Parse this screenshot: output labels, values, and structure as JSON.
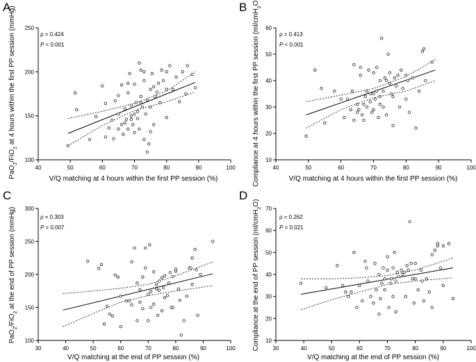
{
  "chart_data": [
    {
      "type": "scatter",
      "panel_letter": "A",
      "xlabel": "V/Q matching at 4 hours within the first PP session (%)",
      "ylabel_parts": [
        "PaO",
        "2",
        "/FiO",
        "2",
        " at 4 hours within the first PP session (mmHg)"
      ],
      "xlim": [
        40,
        100
      ],
      "ylim": [
        100,
        250
      ],
      "xticks": [
        40,
        50,
        60,
        70,
        80,
        90,
        100
      ],
      "yticks": [
        100,
        150,
        200,
        250
      ],
      "annotation_rho": "ρ = 0.424",
      "annotation_p_label": "P",
      "annotation_p_value": " < 0.001",
      "fit": {
        "x0": 49.3,
        "y0": 130,
        "x1": 89,
        "y1": 188
      },
      "ci_upper": [
        [
          49.3,
          147
        ],
        [
          60,
          155
        ],
        [
          70,
          164
        ],
        [
          80,
          178
        ],
        [
          89,
          200
        ]
      ],
      "ci_lower": [
        [
          49.3,
          116
        ],
        [
          60,
          139
        ],
        [
          70,
          156
        ],
        [
          80,
          166
        ],
        [
          89,
          177
        ]
      ],
      "points": [
        [
          49.3,
          116
        ],
        [
          51.5,
          176
        ],
        [
          52,
          157
        ],
        [
          56,
          123
        ],
        [
          58,
          149
        ],
        [
          60,
          184
        ],
        [
          61,
          164
        ],
        [
          61,
          126
        ],
        [
          62,
          136
        ],
        [
          63,
          145
        ],
        [
          63.5,
          124
        ],
        [
          64,
          167
        ],
        [
          65,
          152
        ],
        [
          65,
          173
        ],
        [
          65,
          135
        ],
        [
          66,
          140
        ],
        [
          66,
          185
        ],
        [
          66.5,
          129
        ],
        [
          67,
          142
        ],
        [
          67,
          158
        ],
        [
          67.5,
          146
        ],
        [
          68,
          135
        ],
        [
          68,
          176
        ],
        [
          68.5,
          198
        ],
        [
          68,
          187
        ],
        [
          69,
          146
        ],
        [
          69,
          162
        ],
        [
          69.5,
          140
        ],
        [
          69,
          150
        ],
        [
          70,
          152
        ],
        [
          70,
          131
        ],
        [
          70,
          186
        ],
        [
          70.5,
          165
        ],
        [
          71,
          147
        ],
        [
          71,
          155
        ],
        [
          71.5,
          210
        ],
        [
          71.5,
          135
        ],
        [
          72,
          165
        ],
        [
          72,
          172
        ],
        [
          72,
          202
        ],
        [
          72.5,
          160
        ],
        [
          73,
          123
        ],
        [
          73,
          190
        ],
        [
          73,
          200
        ],
        [
          73.5,
          152
        ],
        [
          74,
          168
        ],
        [
          74,
          109
        ],
        [
          74.5,
          118
        ],
        [
          75,
          132
        ],
        [
          75,
          160
        ],
        [
          75,
          180
        ],
        [
          75.5,
          198
        ],
        [
          76,
          183
        ],
        [
          76,
          140
        ],
        [
          76.5,
          172
        ],
        [
          77,
          177
        ],
        [
          77.5,
          187
        ],
        [
          78,
          165
        ],
        [
          78.5,
          202
        ],
        [
          79,
          190
        ],
        [
          80,
          200
        ],
        [
          80,
          180
        ],
        [
          80,
          148
        ],
        [
          81,
          207
        ],
        [
          82,
          180
        ],
        [
          83,
          194
        ],
        [
          84,
          166
        ],
        [
          85,
          200
        ],
        [
          86,
          175
        ],
        [
          86.5,
          207
        ],
        [
          88,
          197
        ],
        [
          89,
          182
        ]
      ]
    },
    {
      "type": "scatter",
      "panel_letter": "B",
      "xlabel": "V/Q matching at 4 hours within the first PP session (%)",
      "ylabel_parts": [
        "Compliance at 4 hours within the first PP session (ml/cmH",
        "2",
        "O)"
      ],
      "xlim": [
        40,
        100
      ],
      "ylim": [
        10,
        60
      ],
      "xticks": [
        40,
        50,
        60,
        70,
        80,
        90,
        100
      ],
      "yticks": [
        10,
        20,
        30,
        40,
        50,
        60
      ],
      "annotation_rho": "ρ = 0.413",
      "annotation_p_label": "P",
      "annotation_p_value": " < 0.001",
      "fit": {
        "x0": 49.3,
        "y0": 27,
        "x1": 89,
        "y1": 44
      },
      "ci_upper": [
        [
          49.3,
          32
        ],
        [
          60,
          34.5
        ],
        [
          70,
          37
        ],
        [
          80,
          41.5
        ],
        [
          89,
          48
        ]
      ],
      "ci_lower": [
        [
          49.3,
          22
        ],
        [
          60,
          29
        ],
        [
          70,
          33.5
        ],
        [
          80,
          36
        ],
        [
          89,
          40
        ]
      ],
      "points": [
        [
          49.3,
          19
        ],
        [
          52,
          44
        ],
        [
          54,
          37
        ],
        [
          55,
          24
        ],
        [
          58,
          36
        ],
        [
          60,
          33
        ],
        [
          61,
          26
        ],
        [
          62,
          33
        ],
        [
          63,
          29
        ],
        [
          63.5,
          36
        ],
        [
          64,
          46
        ],
        [
          64,
          25
        ],
        [
          65,
          28
        ],
        [
          65,
          31
        ],
        [
          65.5,
          29
        ],
        [
          66,
          42
        ],
        [
          66,
          45
        ],
        [
          66.5,
          27
        ],
        [
          67,
          25
        ],
        [
          67,
          31
        ],
        [
          67.5,
          34
        ],
        [
          68,
          30
        ],
        [
          68,
          36
        ],
        [
          68.5,
          44
        ],
        [
          69,
          32
        ],
        [
          69,
          35
        ],
        [
          69.5,
          28
        ],
        [
          70,
          29
        ],
        [
          70,
          35
        ],
        [
          70,
          43
        ],
        [
          70.5,
          33
        ],
        [
          71,
          36
        ],
        [
          71,
          45
        ],
        [
          71.5,
          26
        ],
        [
          72,
          31
        ],
        [
          72,
          34
        ],
        [
          72,
          40
        ],
        [
          72.5,
          56
        ],
        [
          73,
          36
        ],
        [
          73,
          30
        ],
        [
          73.5,
          41
        ],
        [
          74,
          27
        ],
        [
          74,
          40
        ],
        [
          74.5,
          50
        ],
        [
          75,
          39
        ],
        [
          75,
          43
        ],
        [
          75.5,
          35
        ],
        [
          76,
          23
        ],
        [
          76,
          34
        ],
        [
          76.5,
          41
        ],
        [
          77,
          38
        ],
        [
          77.5,
          42
        ],
        [
          78,
          30
        ],
        [
          78.5,
          44
        ],
        [
          79,
          37
        ],
        [
          80,
          42
        ],
        [
          80,
          33
        ],
        [
          80.5,
          40
        ],
        [
          81,
          28
        ],
        [
          82,
          41
        ],
        [
          83,
          22
        ],
        [
          84,
          36
        ],
        [
          85,
          51
        ],
        [
          85.5,
          52
        ],
        [
          86,
          40
        ],
        [
          88,
          47
        ]
      ]
    },
    {
      "type": "scatter",
      "panel_letter": "C",
      "xlabel": "V/Q matching at the end of PP session (%)",
      "ylabel_parts": [
        "PaO",
        "2",
        "/FiO",
        "2",
        " at the end of PP session (mmHg)"
      ],
      "xlim": [
        30,
        100
      ],
      "ylim": [
        100,
        300
      ],
      "xticks": [
        30,
        40,
        50,
        60,
        70,
        80,
        90,
        100
      ],
      "yticks": [
        100,
        150,
        200,
        250,
        300
      ],
      "annotation_rho": "ρ = 0.303",
      "annotation_p_label": "P",
      "annotation_p_value": " = 0.007",
      "fit": {
        "x0": 39,
        "y0": 146,
        "x1": 93.5,
        "y1": 201
      },
      "ci_upper": [
        [
          39,
          171
        ],
        [
          50,
          175
        ],
        [
          60,
          179
        ],
        [
          70,
          185
        ],
        [
          80,
          198
        ],
        [
          93.5,
          219
        ]
      ],
      "ci_lower": [
        [
          39,
          121
        ],
        [
          50,
          141
        ],
        [
          60,
          158
        ],
        [
          70,
          168
        ],
        [
          80,
          175
        ],
        [
          93.5,
          183
        ]
      ],
      "points": [
        [
          48,
          220
        ],
        [
          52,
          209
        ],
        [
          53,
          215
        ],
        [
          54,
          125
        ],
        [
          55,
          152
        ],
        [
          56,
          140
        ],
        [
          57,
          137
        ],
        [
          58,
          199
        ],
        [
          59,
          196
        ],
        [
          60,
          167
        ],
        [
          60,
          121
        ],
        [
          62,
          160
        ],
        [
          63,
          160
        ],
        [
          64,
          154
        ],
        [
          64,
          219
        ],
        [
          65,
          240
        ],
        [
          66,
          130
        ],
        [
          66,
          187
        ],
        [
          67,
          158
        ],
        [
          67,
          177
        ],
        [
          68,
          196
        ],
        [
          68,
          148
        ],
        [
          69,
          210
        ],
        [
          69,
          240
        ],
        [
          70,
          130
        ],
        [
          70,
          170
        ],
        [
          70.5,
          245
        ],
        [
          71,
          150
        ],
        [
          71,
          174
        ],
        [
          72,
          155
        ],
        [
          72,
          204
        ],
        [
          73,
          185
        ],
        [
          73,
          178
        ],
        [
          73.5,
          138
        ],
        [
          74,
          190
        ],
        [
          74,
          176
        ],
        [
          75,
          195
        ],
        [
          75,
          145
        ],
        [
          75.5,
          180
        ],
        [
          76,
          198
        ],
        [
          76,
          165
        ],
        [
          77,
          168
        ],
        [
          77.5,
          187
        ],
        [
          78,
          203
        ],
        [
          78.5,
          150
        ],
        [
          79,
          197
        ],
        [
          79,
          150
        ],
        [
          80,
          205
        ],
        [
          80,
          208
        ],
        [
          81,
          178
        ],
        [
          81.5,
          161
        ],
        [
          82,
          108
        ],
        [
          83,
          130
        ],
        [
          84,
          167
        ],
        [
          85,
          210
        ],
        [
          85.5,
          210
        ],
        [
          86,
          225
        ],
        [
          86,
          185
        ],
        [
          87,
          238
        ],
        [
          87.5,
          207
        ],
        [
          88,
          138
        ],
        [
          89,
          200
        ],
        [
          93.5,
          250
        ]
      ]
    },
    {
      "type": "scatter",
      "panel_letter": "D",
      "xlabel": "V/Q matching at the end of PP session (%)",
      "ylabel_parts": [
        "Compliance at the end of PP session (ml/cmH",
        "2",
        "O)"
      ],
      "xlim": [
        30,
        100
      ],
      "ylim": [
        10,
        70
      ],
      "xticks": [
        30,
        40,
        50,
        60,
        70,
        80,
        90,
        100
      ],
      "yticks": [
        10,
        20,
        30,
        40,
        50,
        60,
        70
      ],
      "annotation_rho": "ρ = 0.262",
      "annotation_p_label": "P",
      "annotation_p_value": " = 0.021",
      "fit": {
        "x0": 39,
        "y0": 31,
        "x1": 93.5,
        "y1": 43
      },
      "ci_upper": [
        [
          39,
          38
        ],
        [
          50,
          38
        ],
        [
          60,
          38.5
        ],
        [
          70,
          39.5
        ],
        [
          80,
          42
        ],
        [
          93.5,
          47.5
        ]
      ],
      "ci_lower": [
        [
          39,
          24
        ],
        [
          50,
          28.5
        ],
        [
          60,
          32
        ],
        [
          70,
          35.5
        ],
        [
          80,
          37
        ],
        [
          93.5,
          38.5
        ]
      ],
      "points": [
        [
          39,
          36
        ],
        [
          48,
          34
        ],
        [
          52,
          44
        ],
        [
          54,
          35
        ],
        [
          55,
          32
        ],
        [
          56,
          30
        ],
        [
          57,
          32
        ],
        [
          58,
          50
        ],
        [
          59,
          25
        ],
        [
          60,
          35
        ],
        [
          61,
          28
        ],
        [
          62,
          46
        ],
        [
          62.5,
          43
        ],
        [
          63,
          37
        ],
        [
          64,
          30
        ],
        [
          65,
          27
        ],
        [
          65.5,
          45
        ],
        [
          66,
          33
        ],
        [
          67,
          22
        ],
        [
          67,
          40
        ],
        [
          67.5,
          29
        ],
        [
          68,
          36
        ],
        [
          68.5,
          43
        ],
        [
          69,
          33
        ],
        [
          69,
          38
        ],
        [
          70,
          48
        ],
        [
          70,
          42
        ],
        [
          70.5,
          25
        ],
        [
          71,
          36
        ],
        [
          71.5,
          38
        ],
        [
          72,
          30
        ],
        [
          72,
          43
        ],
        [
          72.5,
          50
        ],
        [
          73,
          23
        ],
        [
          73,
          37
        ],
        [
          73.5,
          41
        ],
        [
          74,
          39
        ],
        [
          75,
          42
        ],
        [
          75.5,
          40
        ],
        [
          76,
          41
        ],
        [
          76.5,
          30
        ],
        [
          77,
          44
        ],
        [
          77.5,
          42
        ],
        [
          78,
          64
        ],
        [
          78.5,
          45
        ],
        [
          79,
          38
        ],
        [
          79.5,
          27
        ],
        [
          80,
          45
        ],
        [
          80,
          38
        ],
        [
          81,
          33
        ],
        [
          82,
          42
        ],
        [
          82.5,
          37
        ],
        [
          83,
          28
        ],
        [
          84,
          38
        ],
        [
          85,
          32
        ],
        [
          86,
          49
        ],
        [
          86,
          25
        ],
        [
          87,
          51
        ],
        [
          88,
          53
        ],
        [
          88,
          54
        ],
        [
          89,
          43
        ],
        [
          90,
          53
        ],
        [
          90,
          35
        ],
        [
          92,
          54
        ],
        [
          93.5,
          29
        ]
      ]
    }
  ]
}
